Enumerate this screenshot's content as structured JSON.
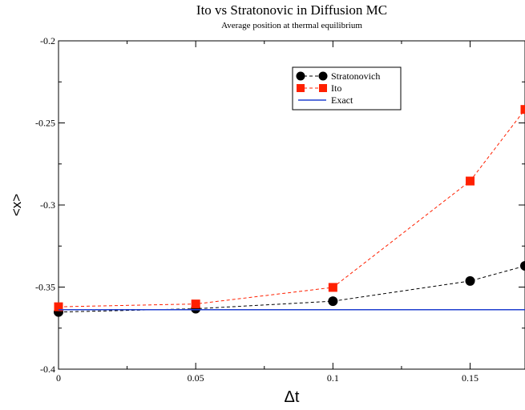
{
  "chart_data": {
    "type": "line",
    "title": "Ito vs Stratonovic in Diffusion MC",
    "subtitle": "Average position at thermal equilibrium",
    "xlabel": "Δt",
    "ylabel": "<x>",
    "xlim": [
      0,
      0.17
    ],
    "ylim": [
      -0.4,
      -0.2
    ],
    "x_ticks": [
      0,
      0.05,
      0.1,
      0.15
    ],
    "x_tick_labels": [
      "0",
      "0.05",
      "0.1",
      "0.15"
    ],
    "y_ticks": [
      -0.4,
      -0.35,
      -0.3,
      -0.25,
      -0.2
    ],
    "y_tick_labels": [
      "-0.4",
      "-0.35",
      "-0.3",
      "-0.25",
      "-0.2"
    ],
    "grid": false,
    "legend_position": "top-right",
    "series": [
      {
        "name": "Stratonovich",
        "color": "#000000",
        "marker": "circle",
        "line": "dashed",
        "x": [
          0,
          0.05,
          0.1,
          0.15,
          0.17
        ],
        "y": [
          -0.3652,
          -0.3632,
          -0.3586,
          -0.3463,
          -0.3371
        ]
      },
      {
        "name": "Ito",
        "color": "#ff2000",
        "marker": "square",
        "line": "dashed",
        "x": [
          0,
          0.05,
          0.1,
          0.15,
          0.17
        ],
        "y": [
          -0.362,
          -0.3603,
          -0.3502,
          -0.2854,
          -0.2418
        ]
      },
      {
        "name": "Exact",
        "color": "#2040d0",
        "marker": "none",
        "line": "solid",
        "x": [
          0,
          0.17
        ],
        "y": [
          -0.3638,
          -0.3638
        ]
      }
    ]
  }
}
